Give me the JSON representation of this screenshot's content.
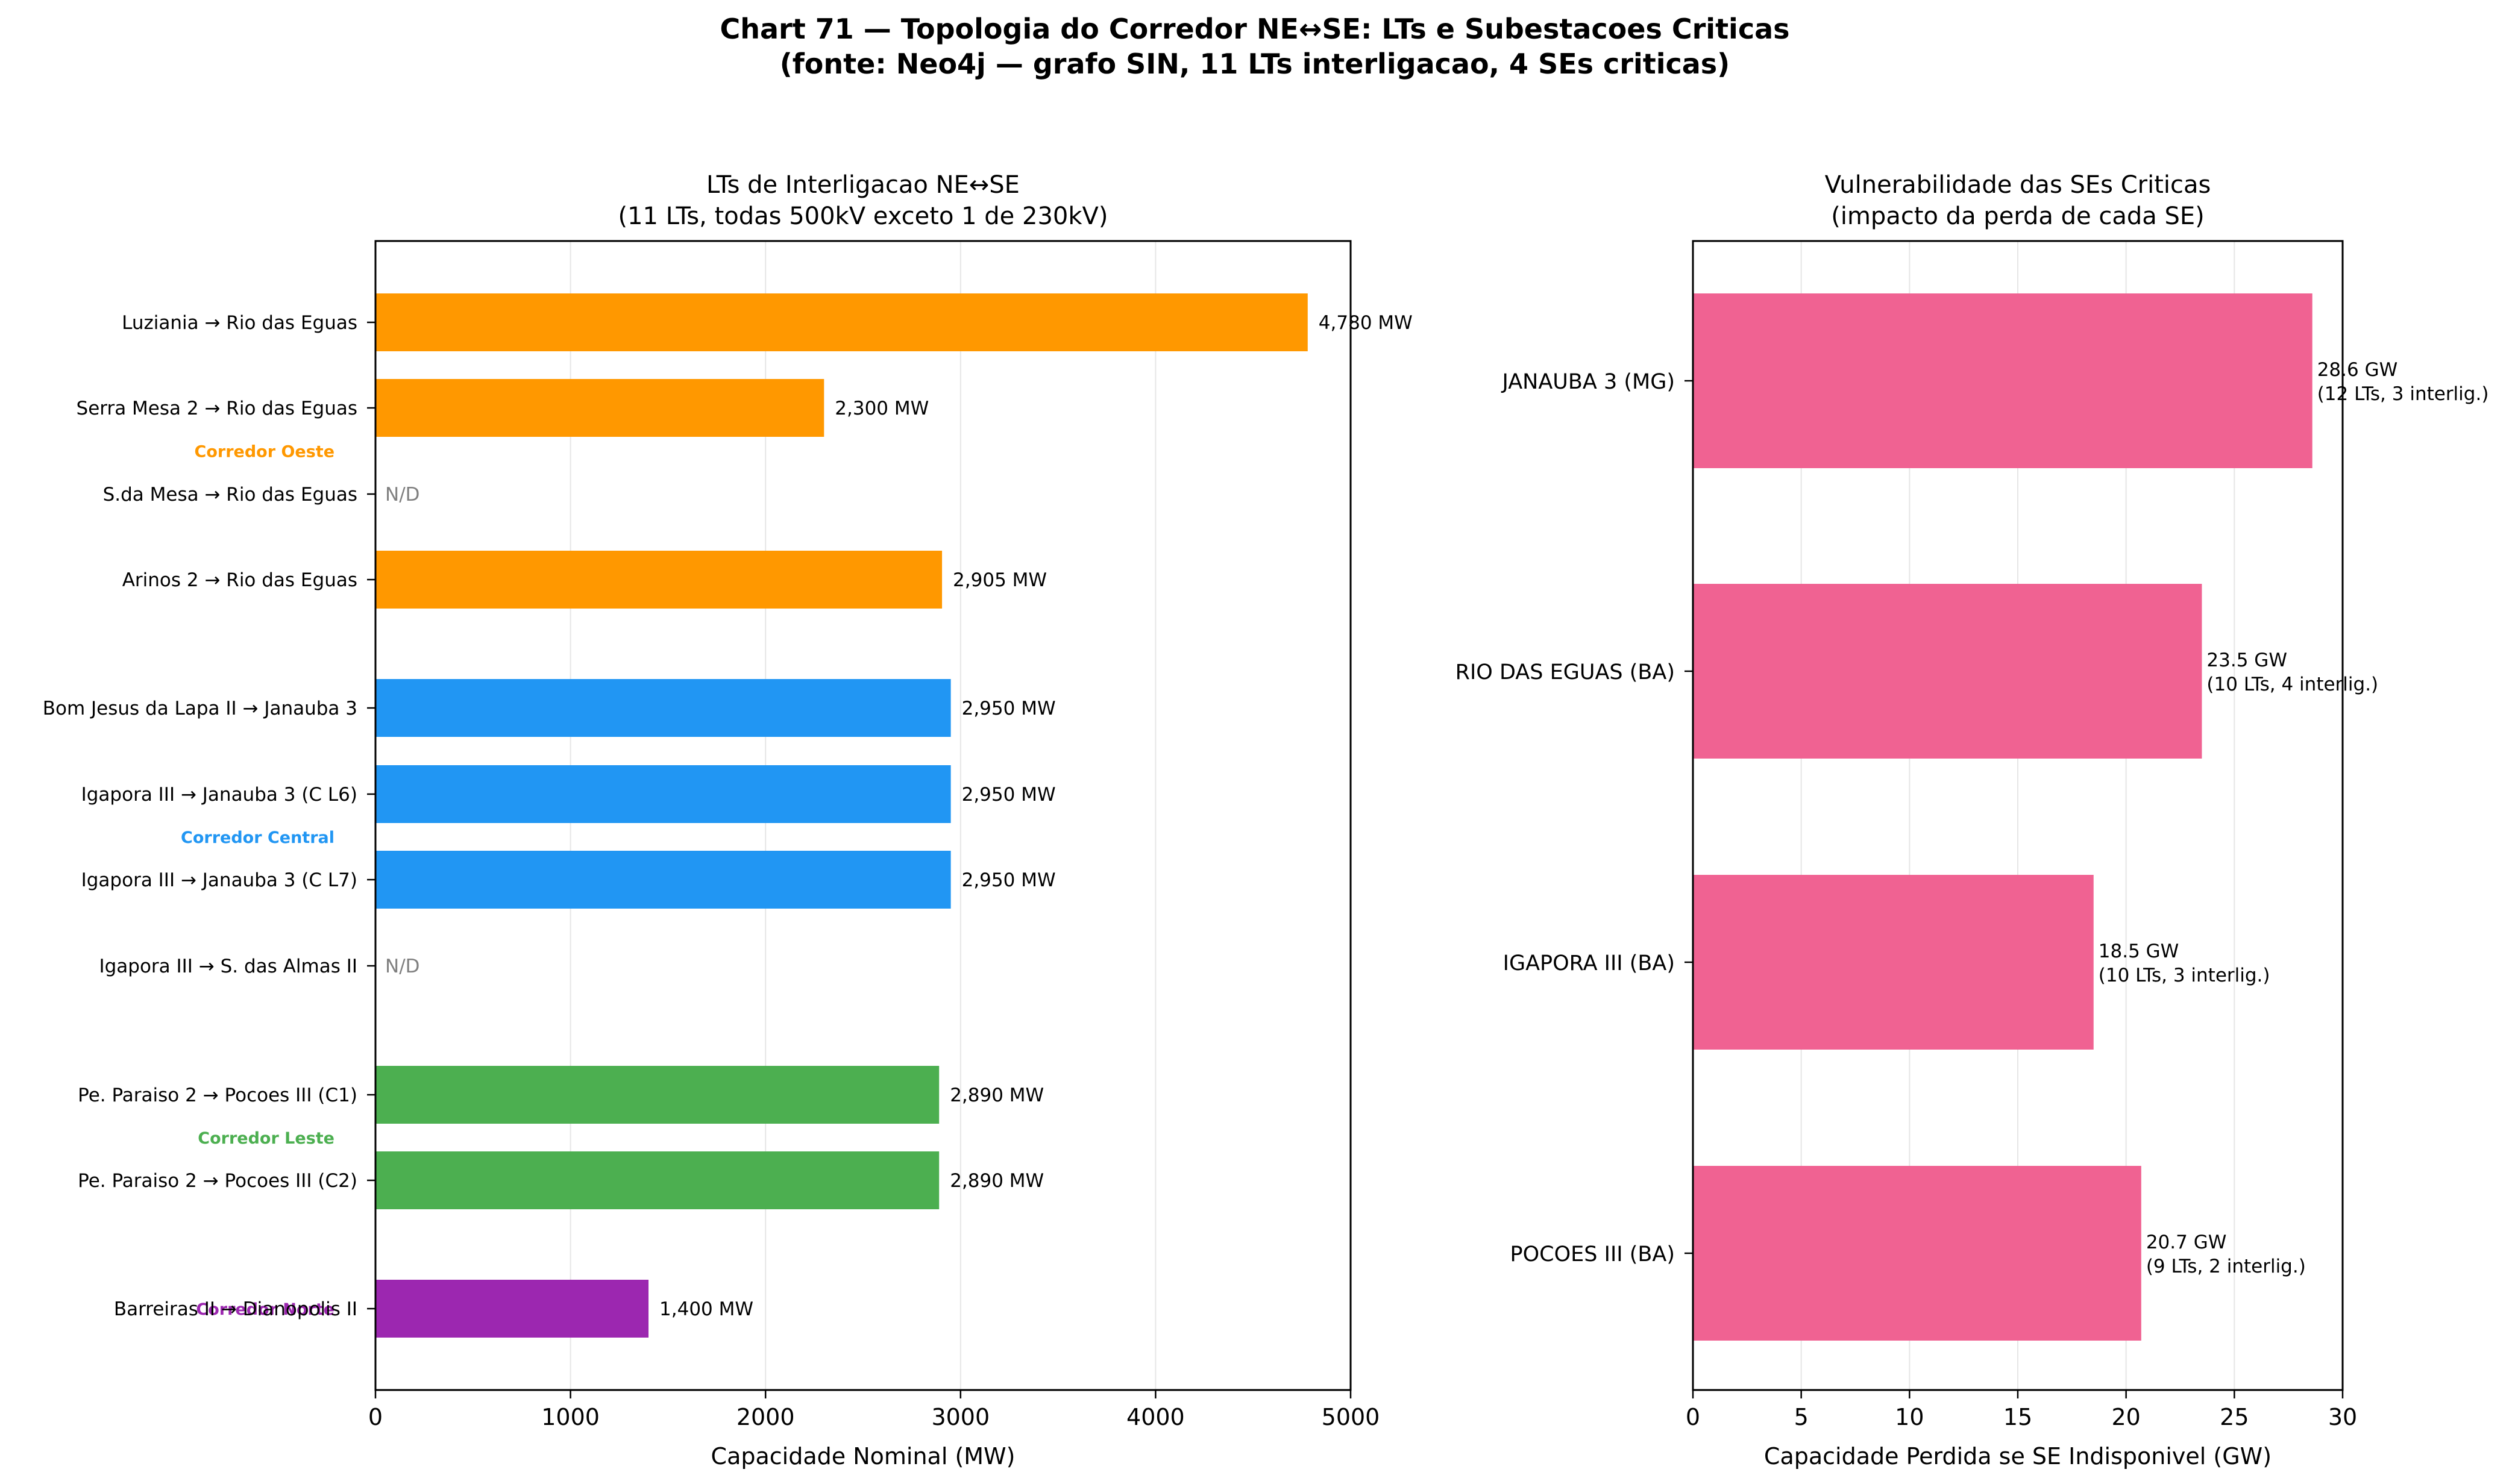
{
  "figure": {
    "title_line1": "Chart 71 — Topologia do Corredor NE↔SE: LTs e Subestacoes Criticas",
    "title_line2": "(fonte: Neo4j — grafo SIN, 11 LTs interligacao, 4 SEs criticas)"
  },
  "colors": {
    "oeste": "#FF9800",
    "central": "#2196F3",
    "leste": "#4CAF50",
    "norte": "#9C27B0",
    "se_bar": "#F06292",
    "na_text": "#808080",
    "grid": "#e6e6e6"
  },
  "chart_data": [
    {
      "type": "bar",
      "orientation": "horizontal",
      "title_line1": "LTs de Interligacao NE↔SE",
      "title_line2": "(11 LTs, todas 500kV exceto 1 de 230kV)",
      "xlabel": "Capacidade Nominal (MW)",
      "ylabel": "",
      "xlim": [
        0,
        5000
      ],
      "xticks": [
        0,
        1000,
        2000,
        3000,
        4000,
        5000
      ],
      "xtick_labels": [
        "0",
        "1000",
        "2000",
        "3000",
        "4000",
        "5000"
      ],
      "grid": "x",
      "na_label": "N/D",
      "groups": [
        {
          "name": "Corredor Oeste",
          "color_key": "oeste",
          "label_row": 1
        },
        {
          "name": "Corredor Central",
          "color_key": "central",
          "label_row": 5
        },
        {
          "name": "Corredor Leste",
          "color_key": "leste",
          "label_row": 8
        },
        {
          "name": "Corredor Norte",
          "color_key": "norte",
          "label_row": 10
        }
      ],
      "bars": [
        {
          "label": "Luziania → Rio das Eguas",
          "value": 4780,
          "value_label": "4,780 MW",
          "group": 0
        },
        {
          "label": "Serra Mesa 2 → Rio das Eguas",
          "value": 2300,
          "value_label": "2,300 MW",
          "group": 0
        },
        {
          "label": "S.da Mesa → Rio das Eguas",
          "value": null,
          "value_label": "N/D",
          "group": 0
        },
        {
          "label": "Arinos 2 → Rio das Eguas",
          "value": 2905,
          "value_label": "2,905 MW",
          "group": 0
        },
        {
          "label": "Bom Jesus da Lapa II → Janauba 3",
          "value": 2950,
          "value_label": "2,950 MW",
          "group": 1
        },
        {
          "label": "Igapora III → Janauba 3 (C L6)",
          "value": 2950,
          "value_label": "2,950 MW",
          "group": 1
        },
        {
          "label": "Igapora III → Janauba 3 (C L7)",
          "value": 2950,
          "value_label": "2,950 MW",
          "group": 1
        },
        {
          "label": "Igapora III → S. das Almas II",
          "value": null,
          "value_label": "N/D",
          "group": 1
        },
        {
          "label": "Pe. Paraiso 2 → Pocoes III (C1)",
          "value": 2890,
          "value_label": "2,890 MW",
          "group": 2
        },
        {
          "label": "Pe. Paraiso 2 → Pocoes III (C2)",
          "value": 2890,
          "value_label": "2,890 MW",
          "group": 2
        },
        {
          "label": "Barreiras II → Dianopolis II",
          "value": 1400,
          "value_label": "1,400 MW",
          "group": 3
        }
      ]
    },
    {
      "type": "bar",
      "orientation": "horizontal",
      "title_line1": "Vulnerabilidade das SEs Criticas",
      "title_line2": "(impacto da perda de cada SE)",
      "xlabel": "Capacidade Perdida se SE Indisponivel (GW)",
      "ylabel": "",
      "xlim": [
        0,
        30
      ],
      "xticks": [
        0,
        5,
        10,
        15,
        20,
        25,
        30
      ],
      "xtick_labels": [
        "0",
        "5",
        "10",
        "15",
        "20",
        "25",
        "30"
      ],
      "grid": "x",
      "bars": [
        {
          "label": "JANAUBA 3 (MG)",
          "value": 28.6,
          "value_line1": "28.6 GW",
          "value_line2": "(12 LTs, 3 interlig.)"
        },
        {
          "label": "RIO DAS EGUAS (BA)",
          "value": 23.5,
          "value_line1": "23.5 GW",
          "value_line2": "(10 LTs, 4 interlig.)"
        },
        {
          "label": "IGAPORA III (BA)",
          "value": 18.5,
          "value_line1": "18.5 GW",
          "value_line2": "(10 LTs, 3 interlig.)"
        },
        {
          "label": "POCOES III (BA)",
          "value": 20.7,
          "value_line1": "20.7 GW",
          "value_line2": "(9 LTs, 2 interlig.)"
        }
      ]
    }
  ]
}
